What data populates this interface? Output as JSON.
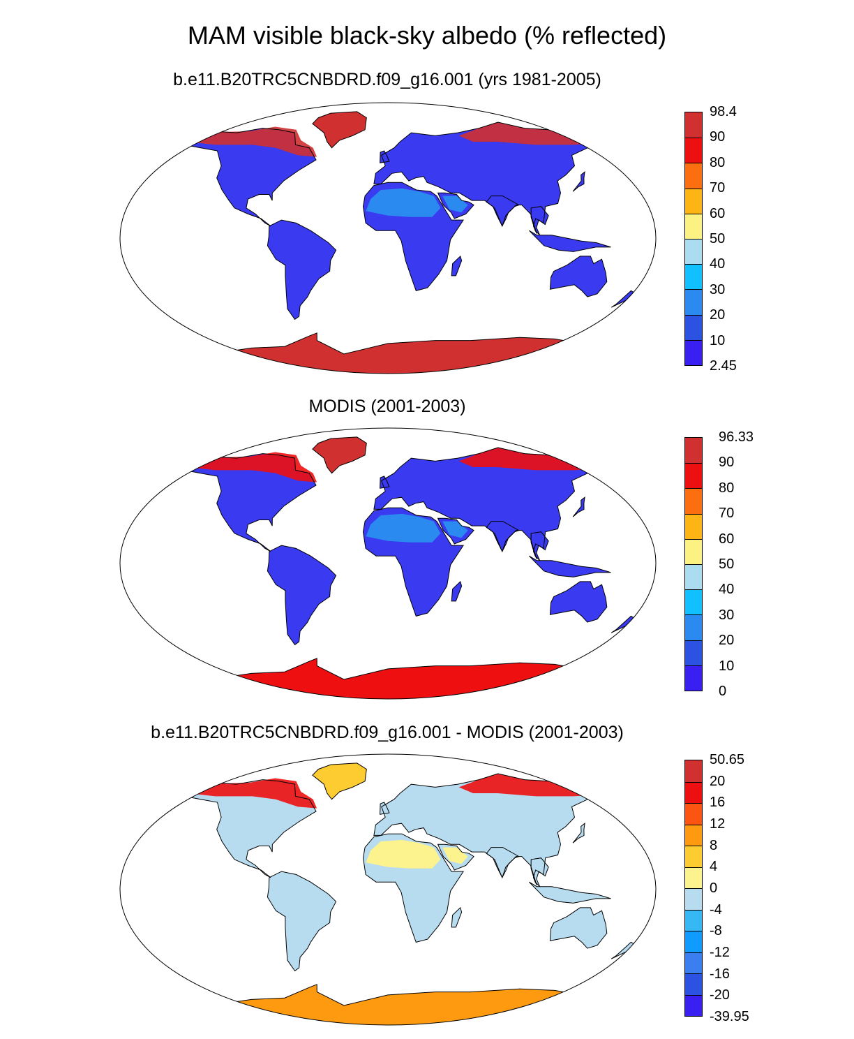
{
  "title": "MAM visible black-sky albedo (% reflected)",
  "panels": [
    {
      "id": "model",
      "title": "b.e11.B20TRC5CNBDRD.f09_g16.001 (yrs 1981-2005)",
      "colorbar": {
        "labels": [
          "98.4",
          "90",
          "80",
          "70",
          "60",
          "50",
          "40",
          "30",
          "20",
          "10",
          "2.45"
        ],
        "colors": [
          "#d03030",
          "#ee1010",
          "#fb6f11",
          "#fdb515",
          "#fcf283",
          "#abdcef",
          "#10c0ff",
          "#2a8af0",
          "#2b52e0",
          "#3a1ff3"
        ]
      },
      "fills": {
        "antarctica": "#d03030",
        "greenland": "#d03030",
        "arctic": "#d03030",
        "land": "#3a3af0",
        "desert": "#2a8af0"
      }
    },
    {
      "id": "obs",
      "title": "MODIS (2001-2003)",
      "colorbar": {
        "labels": [
          "96.33",
          "90",
          "80",
          "70",
          "60",
          "50",
          "40",
          "30",
          "20",
          "10",
          "0"
        ],
        "colors": [
          "#d03030",
          "#ee1010",
          "#fb6f11",
          "#fdb515",
          "#fcf283",
          "#abdcef",
          "#10c0ff",
          "#2a8af0",
          "#2b52e0",
          "#3a1ff3"
        ]
      },
      "fills": {
        "antarctica": "#ee1010",
        "greenland": "#d03030",
        "arctic": "#ee1010",
        "land": "#3a3af0",
        "desert": "#2a8af0"
      }
    },
    {
      "id": "diff",
      "title": "b.e11.B20TRC5CNBDRD.f09_g16.001 - MODIS (2001-2003)",
      "colorbar": {
        "labels": [
          "50.65",
          "20",
          "16",
          "12",
          "8",
          "4",
          "0",
          "-4",
          "-8",
          "-12",
          "-16",
          "-20",
          "-39.95"
        ],
        "colors": [
          "#d03030",
          "#ee1010",
          "#fb5511",
          "#fd9a10",
          "#fdcc30",
          "#fcf28e",
          "#b7dcf0",
          "#36b8f5",
          "#109cff",
          "#3a7ef0",
          "#2b52e0",
          "#3a1ff3"
        ]
      },
      "fills": {
        "antarctica": "#fd9a10",
        "greenland": "#fdcc30",
        "arctic": "#ee1010",
        "land": "#b7dcf0",
        "desert": "#fcf28e"
      }
    }
  ]
}
